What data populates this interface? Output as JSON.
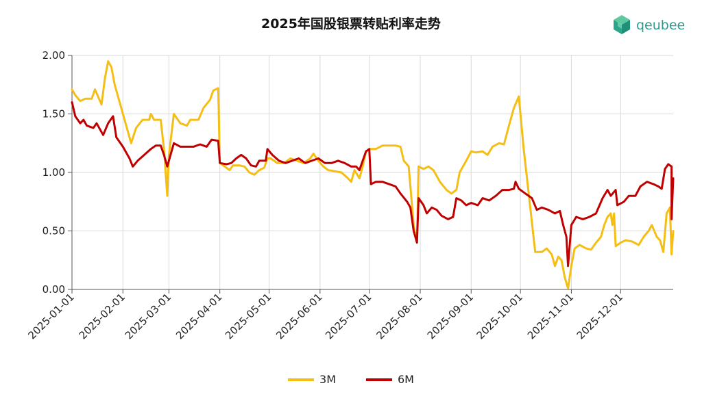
{
  "brand": {
    "logo_text": "qeubee"
  },
  "chart_data": {
    "type": "line",
    "title": "2025年国股银票转贴利率走势",
    "xlabel": "",
    "ylabel": "",
    "ylim": [
      0,
      2
    ],
    "yticks": [
      "0.00",
      "0.50",
      "1.00",
      "1.50",
      "2.00"
    ],
    "xticks": [
      "2025-01-01",
      "2025-02-01",
      "2025-03-01",
      "2025-04-01",
      "2025-05-01",
      "2025-06-01",
      "2025-07-01",
      "2025-08-01",
      "2025-09-01",
      "2025-10-01",
      "2025-11-01",
      "2025-12-01"
    ],
    "grid": true,
    "legend_position": "bottom",
    "series": [
      {
        "name": "3M",
        "color": "#F5BE14",
        "points": [
          [
            "2025-01-01",
            1.71
          ],
          [
            "2025-01-03",
            1.66
          ],
          [
            "2025-01-06",
            1.61
          ],
          [
            "2025-01-09",
            1.63
          ],
          [
            "2025-01-13",
            1.63
          ],
          [
            "2025-01-15",
            1.71
          ],
          [
            "2025-01-19",
            1.58
          ],
          [
            "2025-01-21",
            1.8
          ],
          [
            "2025-01-23",
            1.95
          ],
          [
            "2025-01-25",
            1.9
          ],
          [
            "2025-01-27",
            1.75
          ],
          [
            "2025-01-31",
            1.55
          ],
          [
            "2025-02-04",
            1.35
          ],
          [
            "2025-02-06",
            1.25
          ],
          [
            "2025-02-09",
            1.38
          ],
          [
            "2025-02-13",
            1.45
          ],
          [
            "2025-02-17",
            1.45
          ],
          [
            "2025-02-18",
            1.5
          ],
          [
            "2025-02-20",
            1.45
          ],
          [
            "2025-02-24",
            1.45
          ],
          [
            "2025-02-26",
            1.2
          ],
          [
            "2025-02-28",
            0.8
          ],
          [
            "2025-03-01",
            1.15
          ],
          [
            "2025-03-04",
            1.5
          ],
          [
            "2025-03-08",
            1.42
          ],
          [
            "2025-03-12",
            1.4
          ],
          [
            "2025-03-14",
            1.45
          ],
          [
            "2025-03-19",
            1.45
          ],
          [
            "2025-03-22",
            1.55
          ],
          [
            "2025-03-26",
            1.62
          ],
          [
            "2025-03-28",
            1.7
          ],
          [
            "2025-03-31",
            1.72
          ],
          [
            "2025-04-01",
            1.08
          ],
          [
            "2025-04-04",
            1.05
          ],
          [
            "2025-04-07",
            1.02
          ],
          [
            "2025-04-09",
            1.06
          ],
          [
            "2025-04-13",
            1.06
          ],
          [
            "2025-04-16",
            1.05
          ],
          [
            "2025-04-19",
            1.0
          ],
          [
            "2025-04-22",
            0.98
          ],
          [
            "2025-04-25",
            1.02
          ],
          [
            "2025-04-28",
            1.04
          ],
          [
            "2025-04-30",
            1.12
          ],
          [
            "2025-05-02",
            1.12
          ],
          [
            "2025-05-06",
            1.08
          ],
          [
            "2025-05-10",
            1.08
          ],
          [
            "2025-05-14",
            1.12
          ],
          [
            "2025-05-18",
            1.1
          ],
          [
            "2025-05-22",
            1.08
          ],
          [
            "2025-05-26",
            1.12
          ],
          [
            "2025-05-28",
            1.16
          ],
          [
            "2025-05-31",
            1.1
          ],
          [
            "2025-06-03",
            1.05
          ],
          [
            "2025-06-06",
            1.02
          ],
          [
            "2025-06-10",
            1.01
          ],
          [
            "2025-06-14",
            1.0
          ],
          [
            "2025-06-18",
            0.95
          ],
          [
            "2025-06-20",
            0.92
          ],
          [
            "2025-06-22",
            1.02
          ],
          [
            "2025-06-25",
            0.95
          ],
          [
            "2025-06-27",
            1.05
          ],
          [
            "2025-06-29",
            1.18
          ],
          [
            "2025-07-01",
            1.2
          ],
          [
            "2025-07-05",
            1.2
          ],
          [
            "2025-07-09",
            1.23
          ],
          [
            "2025-07-13",
            1.23
          ],
          [
            "2025-07-17",
            1.23
          ],
          [
            "2025-07-20",
            1.22
          ],
          [
            "2025-07-22",
            1.1
          ],
          [
            "2025-07-25",
            1.05
          ],
          [
            "2025-07-28",
            0.55
          ],
          [
            "2025-07-30",
            0.4
          ],
          [
            "2025-07-31",
            1.05
          ],
          [
            "2025-08-03",
            1.03
          ],
          [
            "2025-08-06",
            1.05
          ],
          [
            "2025-08-09",
            1.02
          ],
          [
            "2025-08-13",
            0.92
          ],
          [
            "2025-08-17",
            0.85
          ],
          [
            "2025-08-20",
            0.82
          ],
          [
            "2025-08-23",
            0.85
          ],
          [
            "2025-08-25",
            1.0
          ],
          [
            "2025-08-27",
            1.05
          ],
          [
            "2025-08-29",
            1.1
          ],
          [
            "2025-09-01",
            1.18
          ],
          [
            "2025-09-04",
            1.17
          ],
          [
            "2025-09-08",
            1.18
          ],
          [
            "2025-09-11",
            1.15
          ],
          [
            "2025-09-14",
            1.22
          ],
          [
            "2025-09-18",
            1.25
          ],
          [
            "2025-09-21",
            1.24
          ],
          [
            "2025-09-24",
            1.4
          ],
          [
            "2025-09-27",
            1.55
          ],
          [
            "2025-09-30",
            1.65
          ],
          [
            "2025-10-03",
            1.2
          ],
          [
            "2025-10-07",
            0.7
          ],
          [
            "2025-10-10",
            0.32
          ],
          [
            "2025-10-14",
            0.32
          ],
          [
            "2025-10-17",
            0.35
          ],
          [
            "2025-10-20",
            0.3
          ],
          [
            "2025-10-22",
            0.2
          ],
          [
            "2025-10-24",
            0.28
          ],
          [
            "2025-10-26",
            0.25
          ],
          [
            "2025-10-28",
            0.1
          ],
          [
            "2025-10-30",
            0.01
          ],
          [
            "2025-11-01",
            0.2
          ],
          [
            "2025-11-03",
            0.35
          ],
          [
            "2025-11-06",
            0.38
          ],
          [
            "2025-11-10",
            0.35
          ],
          [
            "2025-11-13",
            0.34
          ],
          [
            "2025-11-16",
            0.4
          ],
          [
            "2025-11-19",
            0.45
          ],
          [
            "2025-11-21",
            0.55
          ],
          [
            "2025-11-23",
            0.62
          ],
          [
            "2025-11-25",
            0.65
          ],
          [
            "2025-11-26",
            0.55
          ],
          [
            "2025-11-27",
            0.65
          ],
          [
            "2025-11-28",
            0.37
          ],
          [
            "2025-12-01",
            0.4
          ],
          [
            "2025-12-04",
            0.42
          ],
          [
            "2025-12-08",
            0.41
          ],
          [
            "2025-12-12",
            0.38
          ],
          [
            "2025-12-15",
            0.45
          ],
          [
            "2025-12-18",
            0.5
          ],
          [
            "2025-12-20",
            0.55
          ],
          [
            "2025-12-23",
            0.45
          ],
          [
            "2025-12-25",
            0.42
          ],
          [
            "2025-12-27",
            0.32
          ],
          [
            "2025-12-29",
            0.65
          ],
          [
            "2025-12-31",
            0.7
          ],
          [
            "2026-01-01",
            0.3
          ],
          [
            "2026-01-02",
            0.5
          ]
        ]
      },
      {
        "name": "6M",
        "color": "#C00000",
        "points": [
          [
            "2025-01-01",
            1.6
          ],
          [
            "2025-01-03",
            1.48
          ],
          [
            "2025-01-06",
            1.42
          ],
          [
            "2025-01-08",
            1.45
          ],
          [
            "2025-01-10",
            1.4
          ],
          [
            "2025-01-14",
            1.38
          ],
          [
            "2025-01-16",
            1.42
          ],
          [
            "2025-01-20",
            1.32
          ],
          [
            "2025-01-23",
            1.42
          ],
          [
            "2025-01-26",
            1.48
          ],
          [
            "2025-01-28",
            1.3
          ],
          [
            "2025-02-01",
            1.22
          ],
          [
            "2025-02-05",
            1.12
          ],
          [
            "2025-02-07",
            1.05
          ],
          [
            "2025-02-10",
            1.1
          ],
          [
            "2025-02-14",
            1.15
          ],
          [
            "2025-02-18",
            1.2
          ],
          [
            "2025-02-21",
            1.23
          ],
          [
            "2025-02-24",
            1.23
          ],
          [
            "2025-02-26",
            1.15
          ],
          [
            "2025-02-28",
            1.05
          ],
          [
            "2025-03-04",
            1.25
          ],
          [
            "2025-03-08",
            1.22
          ],
          [
            "2025-03-12",
            1.22
          ],
          [
            "2025-03-16",
            1.22
          ],
          [
            "2025-03-20",
            1.24
          ],
          [
            "2025-03-24",
            1.22
          ],
          [
            "2025-03-27",
            1.28
          ],
          [
            "2025-03-31",
            1.27
          ],
          [
            "2025-04-01",
            1.08
          ],
          [
            "2025-04-05",
            1.07
          ],
          [
            "2025-04-08",
            1.08
          ],
          [
            "2025-04-11",
            1.12
          ],
          [
            "2025-04-14",
            1.15
          ],
          [
            "2025-04-17",
            1.12
          ],
          [
            "2025-04-20",
            1.06
          ],
          [
            "2025-04-23",
            1.05
          ],
          [
            "2025-04-25",
            1.1
          ],
          [
            "2025-04-29",
            1.1
          ],
          [
            "2025-04-30",
            1.2
          ],
          [
            "2025-05-03",
            1.15
          ],
          [
            "2025-05-07",
            1.1
          ],
          [
            "2025-05-11",
            1.08
          ],
          [
            "2025-05-15",
            1.1
          ],
          [
            "2025-05-19",
            1.12
          ],
          [
            "2025-05-23",
            1.08
          ],
          [
            "2025-05-27",
            1.1
          ],
          [
            "2025-05-31",
            1.12
          ],
          [
            "2025-06-04",
            1.08
          ],
          [
            "2025-06-08",
            1.08
          ],
          [
            "2025-06-12",
            1.1
          ],
          [
            "2025-06-16",
            1.08
          ],
          [
            "2025-06-20",
            1.05
          ],
          [
            "2025-06-23",
            1.05
          ],
          [
            "2025-06-25",
            1.02
          ],
          [
            "2025-06-27",
            1.1
          ],
          [
            "2025-06-29",
            1.18
          ],
          [
            "2025-07-01",
            1.2
          ],
          [
            "2025-07-02",
            0.9
          ],
          [
            "2025-07-05",
            0.92
          ],
          [
            "2025-07-09",
            0.92
          ],
          [
            "2025-07-13",
            0.9
          ],
          [
            "2025-07-17",
            0.88
          ],
          [
            "2025-07-20",
            0.82
          ],
          [
            "2025-07-24",
            0.75
          ],
          [
            "2025-07-26",
            0.7
          ],
          [
            "2025-07-28",
            0.5
          ],
          [
            "2025-07-30",
            0.4
          ],
          [
            "2025-07-31",
            0.78
          ],
          [
            "2025-08-03",
            0.72
          ],
          [
            "2025-08-05",
            0.65
          ],
          [
            "2025-08-08",
            0.7
          ],
          [
            "2025-08-11",
            0.68
          ],
          [
            "2025-08-14",
            0.63
          ],
          [
            "2025-08-18",
            0.6
          ],
          [
            "2025-08-21",
            0.62
          ],
          [
            "2025-08-23",
            0.78
          ],
          [
            "2025-08-26",
            0.76
          ],
          [
            "2025-08-29",
            0.72
          ],
          [
            "2025-09-01",
            0.74
          ],
          [
            "2025-09-05",
            0.72
          ],
          [
            "2025-09-08",
            0.78
          ],
          [
            "2025-09-12",
            0.76
          ],
          [
            "2025-09-16",
            0.8
          ],
          [
            "2025-09-20",
            0.85
          ],
          [
            "2025-09-24",
            0.85
          ],
          [
            "2025-09-27",
            0.86
          ],
          [
            "2025-09-28",
            0.92
          ],
          [
            "2025-09-30",
            0.86
          ],
          [
            "2025-10-04",
            0.82
          ],
          [
            "2025-10-08",
            0.78
          ],
          [
            "2025-10-11",
            0.68
          ],
          [
            "2025-10-14",
            0.7
          ],
          [
            "2025-10-18",
            0.68
          ],
          [
            "2025-10-22",
            0.65
          ],
          [
            "2025-10-25",
            0.67
          ],
          [
            "2025-10-27",
            0.55
          ],
          [
            "2025-10-29",
            0.45
          ],
          [
            "2025-10-30",
            0.2
          ],
          [
            "2025-11-01",
            0.55
          ],
          [
            "2025-11-04",
            0.62
          ],
          [
            "2025-11-08",
            0.6
          ],
          [
            "2025-11-12",
            0.62
          ],
          [
            "2025-11-16",
            0.65
          ],
          [
            "2025-11-20",
            0.78
          ],
          [
            "2025-11-23",
            0.85
          ],
          [
            "2025-11-25",
            0.8
          ],
          [
            "2025-11-28",
            0.85
          ],
          [
            "2025-11-29",
            0.72
          ],
          [
            "2025-12-03",
            0.75
          ],
          [
            "2025-12-06",
            0.8
          ],
          [
            "2025-12-10",
            0.8
          ],
          [
            "2025-12-13",
            0.88
          ],
          [
            "2025-12-17",
            0.92
          ],
          [
            "2025-12-21",
            0.9
          ],
          [
            "2025-12-24",
            0.88
          ],
          [
            "2025-12-26",
            0.86
          ],
          [
            "2025-12-28",
            1.03
          ],
          [
            "2025-12-30",
            1.07
          ],
          [
            "2026-01-01",
            1.05
          ],
          [
            "2026-01-01",
            0.6
          ],
          [
            "2026-01-02",
            0.95
          ]
        ]
      }
    ]
  }
}
